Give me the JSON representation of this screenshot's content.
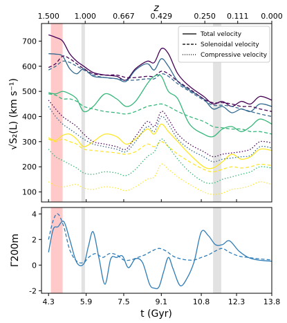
{
  "chart_data": [
    {
      "type": "line",
      "panel": "top",
      "ylabel": "√S₂(L) (km s⁻¹)",
      "top_axis_label": "z",
      "top_ticks": [
        {
          "t": 4.3,
          "label": "1.500"
        },
        {
          "t": 5.86,
          "label": "1.000"
        },
        {
          "t": 7.5,
          "label": "0.667"
        },
        {
          "t": 9.1,
          "label": "0.429"
        },
        {
          "t": 10.95,
          "label": "0.250"
        },
        {
          "t": 12.35,
          "label": "0.111"
        },
        {
          "t": 13.8,
          "label": "0.000"
        }
      ],
      "xlim": [
        4.0,
        13.8
      ],
      "ylim": [
        60,
        770
      ],
      "yticks": [
        100,
        200,
        300,
        400,
        500,
        600,
        700
      ],
      "legend_placement": "top-right",
      "legend": [
        {
          "label": "Total velocity",
          "dash": "solid"
        },
        {
          "label": "Solenoidal velocity",
          "dash": "dashed"
        },
        {
          "label": "Compressive velocity",
          "dash": "dotted"
        }
      ],
      "shaded_bands": [
        {
          "x0": 4.4,
          "x1": 4.9,
          "color": "#ffc0c0"
        },
        {
          "x0": 5.7,
          "x1": 5.85,
          "color": "#dddddd"
        },
        {
          "x0": 11.3,
          "x1": 11.65,
          "color": "#dddddd"
        }
      ],
      "series": [
        {
          "color": "#440154",
          "dash": "solid",
          "x": [
            4.3,
            4.6,
            4.9,
            5.2,
            5.5,
            5.8,
            6.2,
            6.7,
            7.2,
            7.6,
            8.0,
            8.5,
            8.8,
            9.1,
            9.4,
            9.8,
            10.3,
            10.9,
            11.3,
            11.7,
            12.1,
            12.5,
            12.9,
            13.3,
            13.8
          ],
          "y": [
            725,
            715,
            700,
            650,
            620,
            600,
            575,
            565,
            560,
            545,
            590,
            620,
            615,
            670,
            650,
            570,
            520,
            480,
            450,
            460,
            440,
            460,
            450,
            480,
            465
          ]
        },
        {
          "color": "#31688e",
          "dash": "solid",
          "x": [
            4.3,
            4.6,
            4.9,
            5.2,
            5.5,
            5.8,
            6.2,
            6.7,
            7.2,
            7.6,
            8.0,
            8.5,
            8.8,
            9.1,
            9.4,
            9.8,
            10.3,
            10.9,
            11.3,
            11.7,
            12.1,
            12.5,
            12.9,
            13.3,
            13.8
          ],
          "y": [
            650,
            648,
            640,
            590,
            570,
            590,
            560,
            555,
            550,
            540,
            585,
            610,
            585,
            630,
            600,
            540,
            505,
            470,
            430,
            440,
            415,
            430,
            420,
            450,
            440
          ]
        },
        {
          "color": "#440154",
          "dash": "dashed",
          "x": [
            4.3,
            4.6,
            4.9,
            5.2,
            5.5,
            5.8,
            6.2,
            6.7,
            7.2,
            7.6,
            8.0,
            8.5,
            8.8,
            9.1,
            9.4,
            9.8,
            10.3,
            10.9,
            11.3,
            11.7,
            12.1,
            12.5,
            12.9,
            13.3,
            13.8
          ],
          "y": [
            595,
            610,
            640,
            630,
            610,
            590,
            570,
            565,
            565,
            555,
            555,
            560,
            560,
            580,
            570,
            540,
            510,
            470,
            455,
            455,
            450,
            440,
            440,
            430,
            420
          ]
        },
        {
          "color": "#31688e",
          "dash": "dashed",
          "x": [
            4.3,
            4.6,
            4.9,
            5.2,
            5.5,
            5.8,
            6.2,
            6.7,
            7.2,
            7.6,
            8.0,
            8.5,
            8.8,
            9.1,
            9.4,
            9.8,
            10.3,
            10.9,
            11.3,
            11.7,
            12.1,
            12.5,
            12.9,
            13.3,
            13.8
          ],
          "y": [
            585,
            600,
            620,
            615,
            600,
            585,
            565,
            555,
            550,
            545,
            545,
            550,
            550,
            570,
            560,
            530,
            500,
            465,
            445,
            445,
            440,
            430,
            420,
            410,
            400
          ]
        },
        {
          "color": "#35b779",
          "dash": "solid",
          "x": [
            4.3,
            4.6,
            4.9,
            5.2,
            5.5,
            5.8,
            6.2,
            6.7,
            7.2,
            7.6,
            8.0,
            8.5,
            8.8,
            9.1,
            9.4,
            9.8,
            10.3,
            10.9,
            11.3,
            11.7,
            12.1,
            12.5,
            12.9,
            13.3,
            13.8
          ],
          "y": [
            495,
            490,
            500,
            490,
            470,
            420,
            440,
            490,
            470,
            440,
            460,
            530,
            560,
            560,
            500,
            470,
            370,
            330,
            320,
            350,
            360,
            340,
            360,
            390,
            370
          ]
        },
        {
          "color": "#35b779",
          "dash": "dashed",
          "x": [
            4.3,
            4.6,
            4.9,
            5.2,
            5.5,
            5.8,
            6.2,
            6.7,
            7.2,
            7.6,
            8.0,
            8.5,
            8.8,
            9.1,
            9.4,
            9.8,
            10.3,
            10.9,
            11.3,
            11.7,
            12.1,
            12.5,
            12.9,
            13.3,
            13.8
          ],
          "y": [
            490,
            485,
            470,
            470,
            460,
            440,
            430,
            420,
            415,
            410,
            420,
            440,
            445,
            450,
            440,
            420,
            400,
            380,
            360,
            355,
            350,
            350,
            340,
            340,
            330
          ]
        },
        {
          "color": "#fde725",
          "dash": "solid",
          "x": [
            4.3,
            4.6,
            4.9,
            5.2,
            5.5,
            5.8,
            6.2,
            6.7,
            7.2,
            7.6,
            8.0,
            8.5,
            8.8,
            9.1,
            9.4,
            9.8,
            10.3,
            10.9,
            11.3,
            11.7,
            12.1,
            12.5,
            12.9,
            13.3,
            13.8
          ],
          "y": [
            315,
            305,
            325,
            330,
            310,
            280,
            300,
            330,
            320,
            290,
            310,
            350,
            330,
            370,
            340,
            300,
            250,
            200,
            195,
            220,
            250,
            230,
            240,
            270,
            265
          ]
        },
        {
          "color": "#fde725",
          "dash": "dashed",
          "x": [
            4.3,
            4.6,
            4.9,
            5.2,
            5.5,
            5.8,
            6.2,
            6.7,
            7.2,
            7.6,
            8.0,
            8.5,
            8.8,
            9.1,
            9.4,
            9.8,
            10.3,
            10.9,
            11.3,
            11.7,
            12.1,
            12.5,
            12.9,
            13.3,
            13.8
          ],
          "y": [
            310,
            300,
            310,
            300,
            290,
            270,
            265,
            260,
            255,
            250,
            260,
            290,
            280,
            300,
            280,
            250,
            220,
            190,
            180,
            190,
            200,
            195,
            200,
            210,
            205
          ]
        },
        {
          "color": "#440154",
          "dash": "dotted",
          "x": [
            4.3,
            4.6,
            4.9,
            5.2,
            5.5,
            5.8,
            6.2,
            6.7,
            7.2,
            7.6,
            8.0,
            8.5,
            8.8,
            9.1,
            9.4,
            9.8,
            10.3,
            10.9,
            11.3,
            11.7,
            12.1,
            12.5,
            12.9,
            13.3,
            13.8
          ],
          "y": [
            465,
            430,
            400,
            380,
            360,
            330,
            300,
            290,
            280,
            270,
            320,
            380,
            360,
            420,
            390,
            330,
            290,
            260,
            240,
            250,
            255,
            260,
            270,
            300,
            295
          ]
        },
        {
          "color": "#31688e",
          "dash": "dotted",
          "x": [
            4.3,
            4.6,
            4.9,
            5.2,
            5.5,
            5.8,
            6.2,
            6.7,
            7.2,
            7.6,
            8.0,
            8.5,
            8.8,
            9.1,
            9.4,
            9.8,
            10.3,
            10.9,
            11.3,
            11.7,
            12.1,
            12.5,
            12.9,
            13.3,
            13.8
          ],
          "y": [
            440,
            400,
            370,
            350,
            330,
            310,
            290,
            280,
            270,
            260,
            300,
            360,
            340,
            400,
            370,
            310,
            270,
            240,
            220,
            230,
            235,
            240,
            245,
            280,
            275
          ]
        },
        {
          "color": "#35b779",
          "dash": "dotted",
          "x": [
            4.3,
            4.6,
            4.9,
            5.2,
            5.5,
            5.8,
            6.2,
            6.7,
            7.2,
            7.6,
            8.0,
            8.5,
            8.8,
            9.1,
            9.4,
            9.8,
            10.3,
            10.9,
            11.3,
            11.7,
            12.1,
            12.5,
            12.9,
            13.3,
            13.8
          ],
          "y": [
            270,
            240,
            225,
            210,
            195,
            175,
            170,
            180,
            175,
            165,
            190,
            240,
            260,
            310,
            280,
            230,
            180,
            140,
            135,
            150,
            160,
            170,
            180,
            200,
            195
          ]
        },
        {
          "color": "#fde725",
          "dash": "dotted",
          "x": [
            4.3,
            4.6,
            4.9,
            5.2,
            5.5,
            5.8,
            6.2,
            6.7,
            7.2,
            7.6,
            8.0,
            8.5,
            8.8,
            9.1,
            9.4,
            9.8,
            10.3,
            10.9,
            11.3,
            11.7,
            12.1,
            12.5,
            12.9,
            13.3,
            13.8
          ],
          "y": [
            140,
            125,
            120,
            125,
            130,
            115,
            110,
            120,
            115,
            105,
            120,
            150,
            160,
            210,
            190,
            160,
            130,
            100,
            90,
            95,
            110,
            115,
            125,
            140,
            130
          ]
        }
      ]
    },
    {
      "type": "line",
      "panel": "bottom",
      "ylabel": "Γ200m",
      "xlabel": "t (Gyr)",
      "xlim": [
        4.0,
        13.8
      ],
      "xticks": [
        4.3,
        5.9,
        7.5,
        9.1,
        10.8,
        12.3,
        13.8
      ],
      "xtick_labels": [
        "4.3",
        "5.9",
        "7.5",
        "9.1",
        "10.8",
        "12.3",
        "13.8"
      ],
      "ylim": [
        -2.2,
        4.5
      ],
      "yticks": [
        -2,
        0,
        2,
        4
      ],
      "shaded_bands": [
        {
          "x0": 4.4,
          "x1": 4.9,
          "color": "#ffc0c0"
        },
        {
          "x0": 5.7,
          "x1": 5.85,
          "color": "#dddddd"
        },
        {
          "x0": 11.3,
          "x1": 11.65,
          "color": "#dddddd"
        }
      ],
      "series": [
        {
          "color": "#2c7bb6",
          "dash": "solid",
          "x": [
            4.3,
            4.5,
            4.7,
            4.95,
            5.2,
            5.5,
            5.8,
            6.0,
            6.2,
            6.45,
            6.7,
            6.95,
            7.2,
            7.45,
            7.7,
            8.0,
            8.3,
            8.6,
            8.8,
            9.0,
            9.2,
            9.4,
            9.6,
            9.9,
            10.2,
            10.5,
            10.8,
            11.1,
            11.4,
            11.7,
            12.0,
            12.4,
            12.8,
            13.2,
            13.8
          ],
          "y": [
            1.0,
            2.8,
            3.0,
            3.4,
            2.0,
            0.2,
            0.1,
            1.5,
            2.6,
            0.5,
            -1.5,
            0.5,
            0.6,
            0.7,
            -0.2,
            0.5,
            0.2,
            -1.5,
            -1.8,
            -1.7,
            -0.5,
            0.6,
            -0.3,
            -1.6,
            -1.0,
            0.3,
            2.6,
            2.3,
            1.6,
            1.6,
            1.9,
            1.1,
            0.6,
            0.4,
            0.3
          ]
        },
        {
          "color": "#2c7bb6",
          "dash": "dashed",
          "x": [
            4.3,
            4.5,
            4.7,
            4.95,
            5.2,
            5.5,
            5.8,
            6.0,
            6.3,
            6.6,
            6.9,
            7.2,
            7.5,
            7.8,
            8.1,
            8.4,
            8.7,
            9.0,
            9.3,
            9.6,
            9.9,
            10.2,
            10.5,
            10.8,
            11.1,
            11.4,
            11.7,
            12.0,
            12.4,
            12.8,
            13.2,
            13.8
          ],
          "y": [
            2.0,
            3.5,
            4.0,
            3.0,
            1.2,
            0.3,
            0.2,
            0.6,
            0.9,
            0.6,
            0.9,
            0.8,
            0.4,
            0.4,
            0.6,
            0.8,
            1.1,
            1.3,
            1.1,
            0.7,
            0.5,
            0.4,
            0.4,
            0.6,
            0.8,
            1.1,
            1.3,
            1.0,
            0.7,
            0.6,
            0.5,
            0.4
          ]
        }
      ]
    }
  ]
}
